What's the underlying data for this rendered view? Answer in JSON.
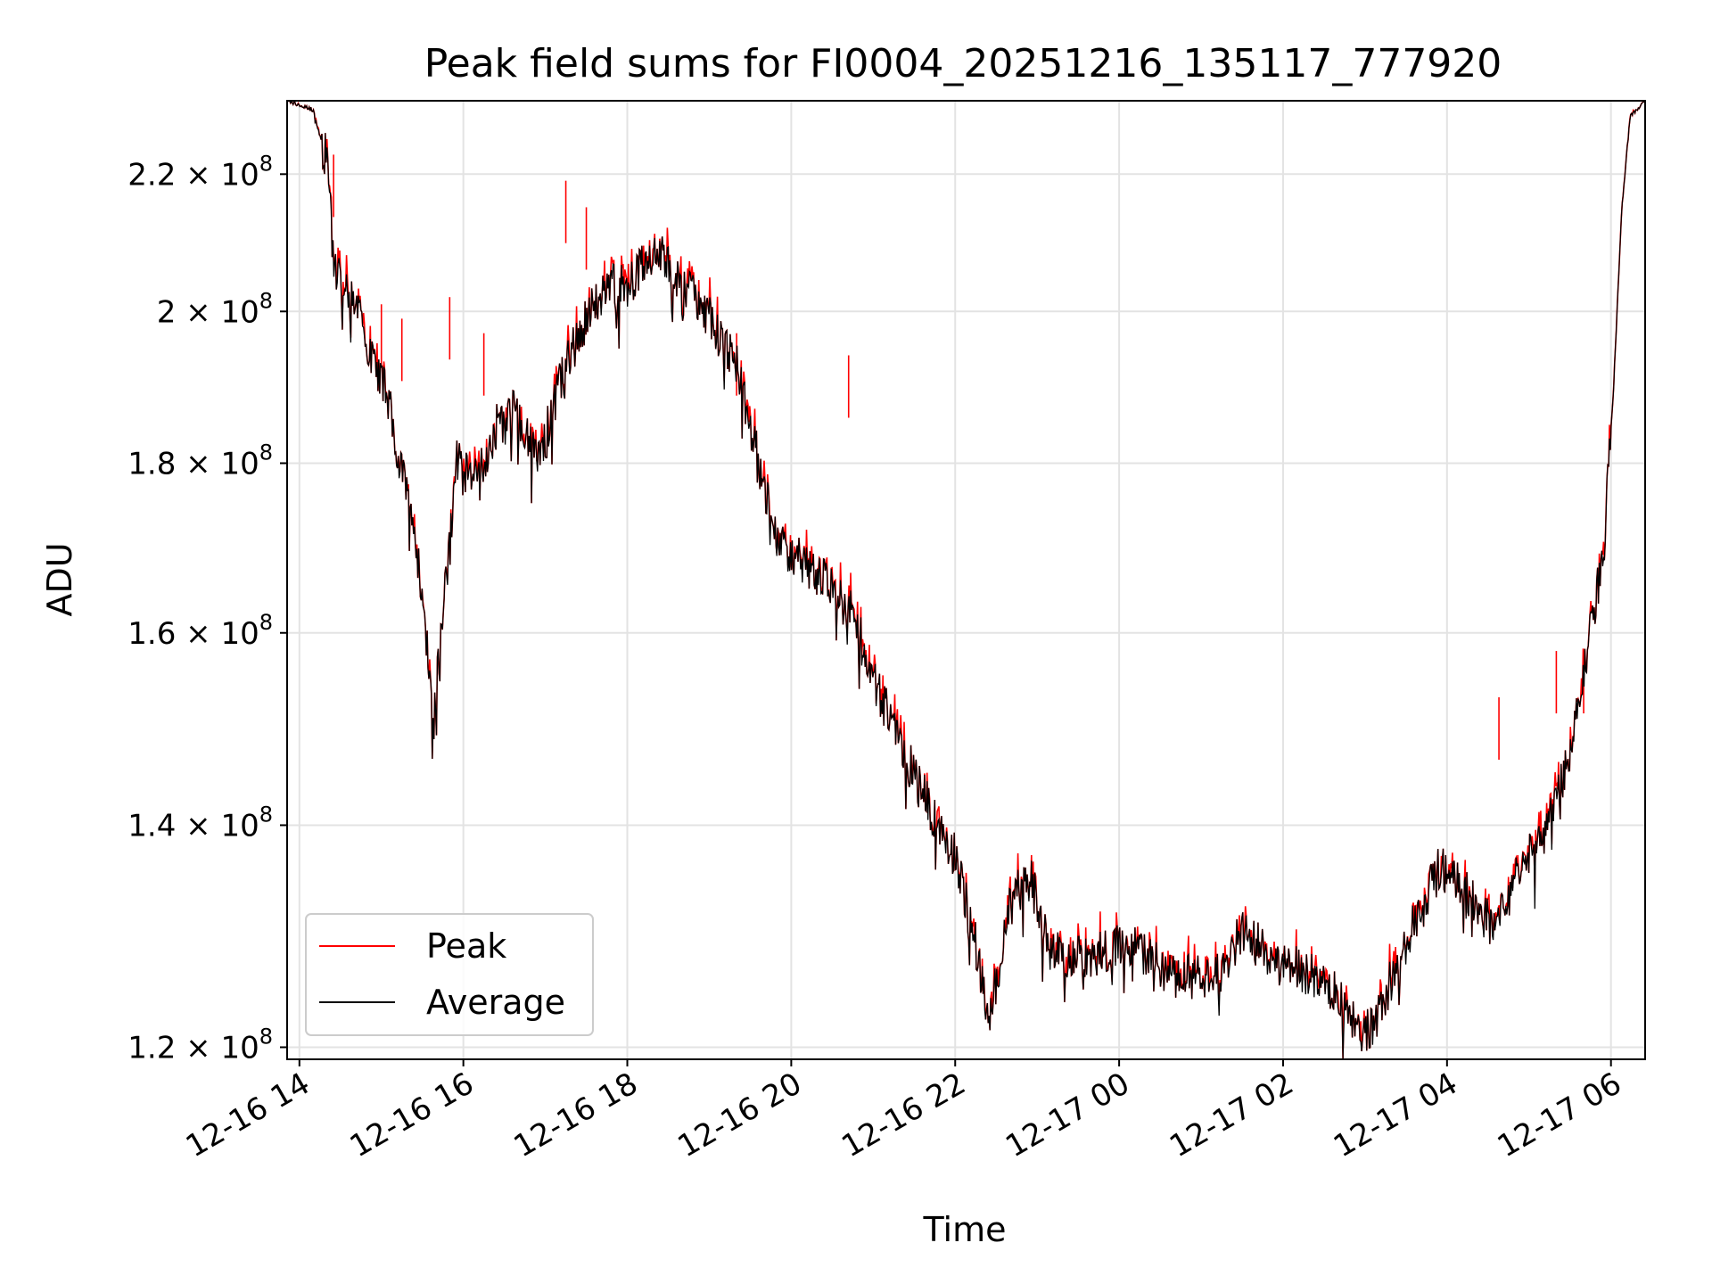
{
  "chart_data": {
    "type": "line",
    "title": "Peak field sums for FI0004_20251216_135117_777920",
    "xlabel": "Time",
    "ylabel": "ADU",
    "y_scale": "log",
    "grid": true,
    "legend_position": "lower-left",
    "xlim": [
      "2025-12-16 13:51",
      "2025-12-17 06:25"
    ],
    "ylim": [
      119000000,
      231500000
    ],
    "x_ticks": [
      {
        "value": "2025-12-16 14:00",
        "label": "12-16 14"
      },
      {
        "value": "2025-12-16 16:00",
        "label": "12-16 16"
      },
      {
        "value": "2025-12-16 18:00",
        "label": "12-16 18"
      },
      {
        "value": "2025-12-16 20:00",
        "label": "12-16 20"
      },
      {
        "value": "2025-12-16 22:00",
        "label": "12-16 22"
      },
      {
        "value": "2025-12-17 00:00",
        "label": "12-17 00"
      },
      {
        "value": "2025-12-17 02:00",
        "label": "12-17 02"
      },
      {
        "value": "2025-12-17 04:00",
        "label": "12-17 04"
      },
      {
        "value": "2025-12-17 06:00",
        "label": "12-17 06"
      }
    ],
    "y_ticks": [
      {
        "value": 120000000,
        "mantissa": "1.2",
        "exp": "8"
      },
      {
        "value": 140000000,
        "mantissa": "1.4",
        "exp": "8"
      },
      {
        "value": 160000000,
        "mantissa": "1.6",
        "exp": "8"
      },
      {
        "value": 180000000,
        "mantissa": "1.8",
        "exp": "8"
      },
      {
        "value": 200000000,
        "mantissa": "2",
        "exp": "8"
      },
      {
        "value": 220000000,
        "mantissa": "2.2",
        "exp": "8"
      }
    ],
    "series": [
      {
        "name": "Average",
        "color": "#000000",
        "points": [
          [
            "2025-12-16 13:51",
            231500000
          ],
          [
            "2025-12-16 14:10",
            230000000
          ],
          [
            "2025-12-16 14:20",
            222000000
          ],
          [
            "2025-12-16 14:25",
            207000000
          ],
          [
            "2025-12-16 14:35",
            203000000
          ],
          [
            "2025-12-16 14:50",
            196000000
          ],
          [
            "2025-12-16 15:05",
            188000000
          ],
          [
            "2025-12-16 15:20",
            175000000
          ],
          [
            "2025-12-16 15:30",
            165000000
          ],
          [
            "2025-12-16 15:38",
            150000000
          ],
          [
            "2025-12-16 15:45",
            162000000
          ],
          [
            "2025-12-16 15:55",
            180000000
          ],
          [
            "2025-12-16 16:10",
            178000000
          ],
          [
            "2025-12-16 16:25",
            185000000
          ],
          [
            "2025-12-16 16:40",
            187000000
          ],
          [
            "2025-12-16 16:55",
            180000000
          ],
          [
            "2025-12-16 17:10",
            190000000
          ],
          [
            "2025-12-16 17:25",
            197000000
          ],
          [
            "2025-12-16 17:45",
            204000000
          ],
          [
            "2025-12-16 18:00",
            203000000
          ],
          [
            "2025-12-16 18:20",
            209000000
          ],
          [
            "2025-12-16 18:40",
            204000000
          ],
          [
            "2025-12-16 19:00",
            199000000
          ],
          [
            "2025-12-16 19:20",
            193000000
          ],
          [
            "2025-12-16 19:35",
            181000000
          ],
          [
            "2025-12-16 19:50",
            170000000
          ],
          [
            "2025-12-16 20:10",
            168000000
          ],
          [
            "2025-12-16 20:30",
            165000000
          ],
          [
            "2025-12-16 20:45",
            162000000
          ],
          [
            "2025-12-16 21:00",
            155000000
          ],
          [
            "2025-12-16 21:20",
            148000000
          ],
          [
            "2025-12-16 21:40",
            142000000
          ],
          [
            "2025-12-16 22:00",
            137000000
          ],
          [
            "2025-12-16 22:15",
            129000000
          ],
          [
            "2025-12-16 22:25",
            122000000
          ],
          [
            "2025-12-16 22:40",
            133000000
          ],
          [
            "2025-12-16 22:55",
            135000000
          ],
          [
            "2025-12-16 23:10",
            128000000
          ],
          [
            "2025-12-16 23:40",
            128000000
          ],
          [
            "2025-12-17 00:10",
            129000000
          ],
          [
            "2025-12-17 00:40",
            126000000
          ],
          [
            "2025-12-17 01:10",
            126000000
          ],
          [
            "2025-12-17 01:30",
            130000000
          ],
          [
            "2025-12-17 02:00",
            127000000
          ],
          [
            "2025-12-17 02:30",
            126000000
          ],
          [
            "2025-12-17 03:00",
            121000000
          ],
          [
            "2025-12-17 03:10",
            123000000
          ],
          [
            "2025-12-17 03:30",
            129000000
          ],
          [
            "2025-12-17 03:55",
            136000000
          ],
          [
            "2025-12-17 04:20",
            133000000
          ],
          [
            "2025-12-17 04:35",
            130000000
          ],
          [
            "2025-12-17 04:50",
            136000000
          ],
          [
            "2025-12-17 05:10",
            138000000
          ],
          [
            "2025-12-17 05:30",
            147000000
          ],
          [
            "2025-12-17 05:45",
            160000000
          ],
          [
            "2025-12-17 05:55",
            170000000
          ],
          [
            "2025-12-17 06:02",
            190000000
          ],
          [
            "2025-12-17 06:08",
            215000000
          ],
          [
            "2025-12-17 06:14",
            229000000
          ],
          [
            "2025-12-17 06:25",
            231500000
          ]
        ]
      },
      {
        "name": "Peak",
        "color": "#ff0000",
        "spikes": [
          [
            "2025-12-16 14:25",
            223000000
          ],
          [
            "2025-12-16 15:00",
            201000000
          ],
          [
            "2025-12-16 15:15",
            199000000
          ],
          [
            "2025-12-16 15:50",
            202000000
          ],
          [
            "2025-12-16 16:15",
            197000000
          ],
          [
            "2025-12-16 17:15",
            219000000
          ],
          [
            "2025-12-16 17:30",
            215000000
          ],
          [
            "2025-12-16 19:20",
            197000000
          ],
          [
            "2025-12-16 20:42",
            194000000
          ],
          [
            "2025-12-17 04:38",
            153000000
          ],
          [
            "2025-12-17 05:20",
            158000000
          ],
          [
            "2025-12-17 05:40",
            158000000
          ]
        ]
      }
    ]
  }
}
